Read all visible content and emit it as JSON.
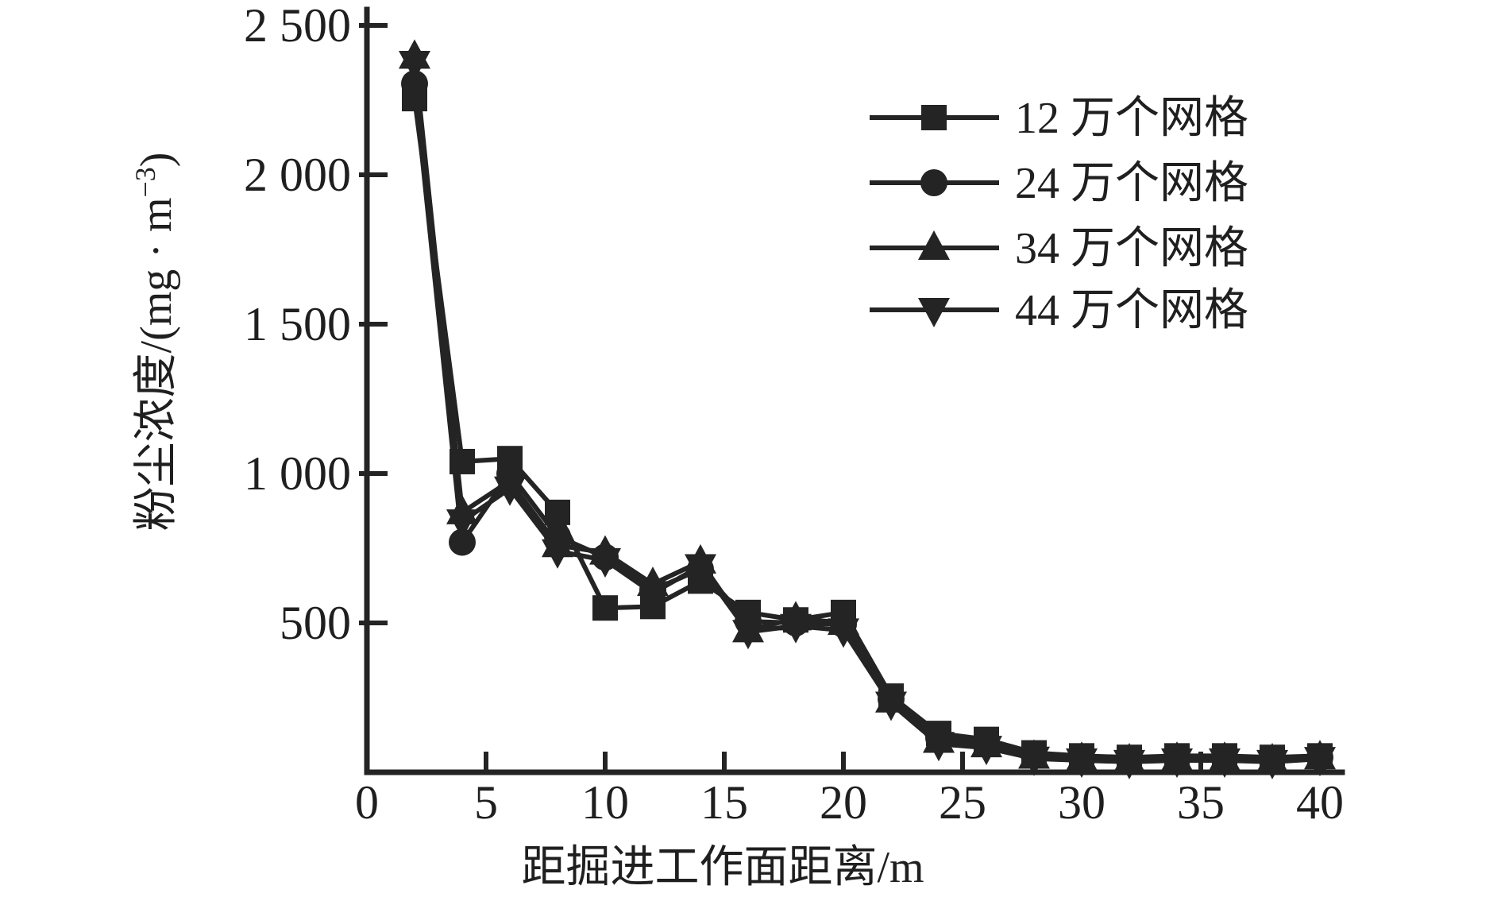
{
  "chart_data": {
    "type": "line",
    "title": "",
    "xlabel": "距掘进工作面距离/m",
    "ylabel": "粉尘浓度/(mg · m⁻³)",
    "ylabel_parts": {
      "base": "粉尘浓度/(mg · m",
      "sup": "−3",
      "close": ")"
    },
    "xlim": [
      0,
      40
    ],
    "ylim": [
      0,
      2500
    ],
    "grid": false,
    "legend_position": "top-right-inside",
    "line_color": "#242424",
    "x_ticks": [
      {
        "value": 0,
        "label": "0"
      },
      {
        "value": 5,
        "label": "5"
      },
      {
        "value": 10,
        "label": "10"
      },
      {
        "value": 15,
        "label": "15"
      },
      {
        "value": 20,
        "label": "20"
      },
      {
        "value": 25,
        "label": "25"
      },
      {
        "value": 30,
        "label": "30"
      },
      {
        "value": 35,
        "label": "35"
      },
      {
        "value": 40,
        "label": "40"
      }
    ],
    "y_ticks": [
      {
        "value": 500,
        "label": "500"
      },
      {
        "value": 1000,
        "label": "1 000"
      },
      {
        "value": 1500,
        "label": "1 500"
      },
      {
        "value": 2000,
        "label": "2 000"
      },
      {
        "value": 2500,
        "label": "2 500"
      }
    ],
    "x": [
      2,
      4,
      6,
      8,
      10,
      12,
      14,
      16,
      18,
      20,
      22,
      24,
      26,
      28,
      30,
      32,
      34,
      36,
      38,
      40
    ],
    "series": [
      {
        "name": "12 万个网格",
        "marker": "square",
        "values": [
          2255,
          1040,
          1050,
          870,
          550,
          555,
          640,
          535,
          510,
          535,
          255,
          130,
          110,
          65,
          55,
          50,
          55,
          55,
          50,
          55
        ]
      },
      {
        "name": "24 万个网格",
        "marker": "circle",
        "values": [
          2305,
          770,
          1000,
          790,
          720,
          610,
          680,
          505,
          500,
          495,
          245,
          115,
          98,
          58,
          50,
          45,
          50,
          50,
          45,
          50
        ]
      },
      {
        "name": "34 万个网格",
        "marker": "triangle-up",
        "values": [
          2395,
          870,
          975,
          760,
          735,
          630,
          705,
          475,
          515,
          500,
          240,
          105,
          90,
          52,
          45,
          40,
          45,
          45,
          40,
          50
        ]
      },
      {
        "name": "44 万个网格",
        "marker": "triangle-down",
        "values": [
          2375,
          840,
          950,
          740,
          710,
          600,
          690,
          470,
          490,
          475,
          230,
          95,
          82,
          46,
          40,
          35,
          40,
          40,
          35,
          45
        ]
      }
    ]
  }
}
